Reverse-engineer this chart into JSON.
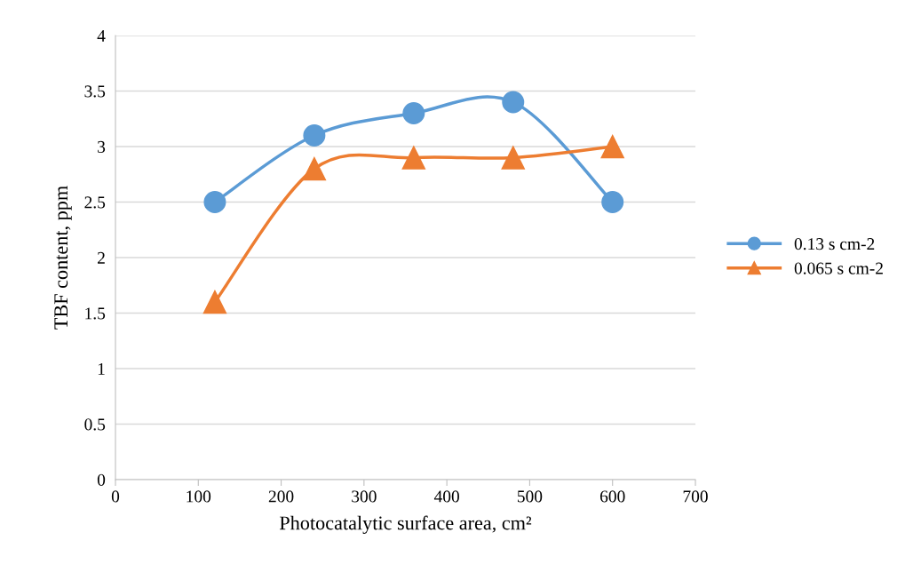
{
  "chart_data": {
    "type": "line",
    "xlabel": "Photocatalytic surface area, cm²",
    "ylabel": "TBF content, ppm",
    "x": [
      120,
      240,
      360,
      480,
      600
    ],
    "series": [
      {
        "name": "0.13 s cm-2",
        "color": "#5b9bd5",
        "marker": "circle",
        "values": [
          2.5,
          3.1,
          3.3,
          3.4,
          2.5
        ]
      },
      {
        "name": "0.065 s cm-2",
        "color": "#ed7d31",
        "marker": "triangle",
        "values": [
          1.6,
          2.8,
          2.9,
          2.9,
          3.0
        ]
      }
    ],
    "xlim": [
      0,
      700
    ],
    "xticks": [
      0,
      100,
      200,
      300,
      400,
      500,
      600,
      700
    ],
    "ylim": [
      0,
      4
    ],
    "yticks": [
      0,
      0.5,
      1,
      1.5,
      2,
      2.5,
      3,
      3.5,
      4
    ],
    "grid": "y",
    "legend": "right",
    "line_style": "solid"
  }
}
